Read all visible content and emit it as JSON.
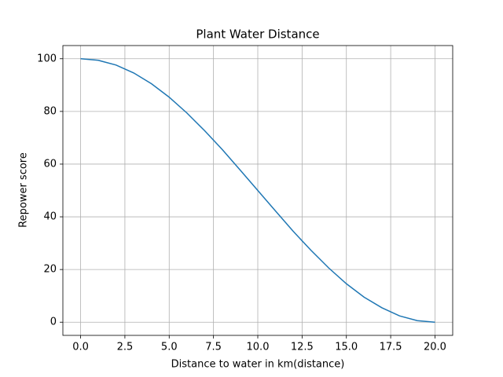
{
  "chart_data": {
    "type": "line",
    "title": "Plant Water Distance",
    "xlabel": "Distance to water in km(distance)",
    "ylabel": "Repower score",
    "x": [
      0,
      1,
      2,
      3,
      4,
      5,
      6,
      7,
      8,
      9,
      10,
      11,
      12,
      13,
      14,
      15,
      16,
      17,
      18,
      19,
      20
    ],
    "series": [
      {
        "name": "Repower score",
        "color": "#1f77b4",
        "values": [
          100,
          99.4,
          97.6,
          94.6,
          90.5,
          85.4,
          79.4,
          72.7,
          65.5,
          57.8,
          50,
          42.2,
          34.5,
          27.3,
          20.6,
          14.6,
          9.5,
          5.5,
          2.4,
          0.6,
          0
        ]
      }
    ],
    "xlim": [
      -1,
      21
    ],
    "xticks": [
      {
        "value": 0,
        "label": "0.0"
      },
      2.5,
      {
        "value": 5,
        "label": "5.0"
      },
      7.5,
      {
        "value": 10,
        "label": "10.0"
      },
      12.5,
      {
        "value": 15,
        "label": "15.0"
      },
      17.5,
      {
        "value": 20,
        "label": "20.0"
      }
    ],
    "ylim": [
      -5,
      105
    ],
    "yticks": [
      0,
      20,
      40,
      60,
      80,
      100
    ],
    "grid": true
  }
}
